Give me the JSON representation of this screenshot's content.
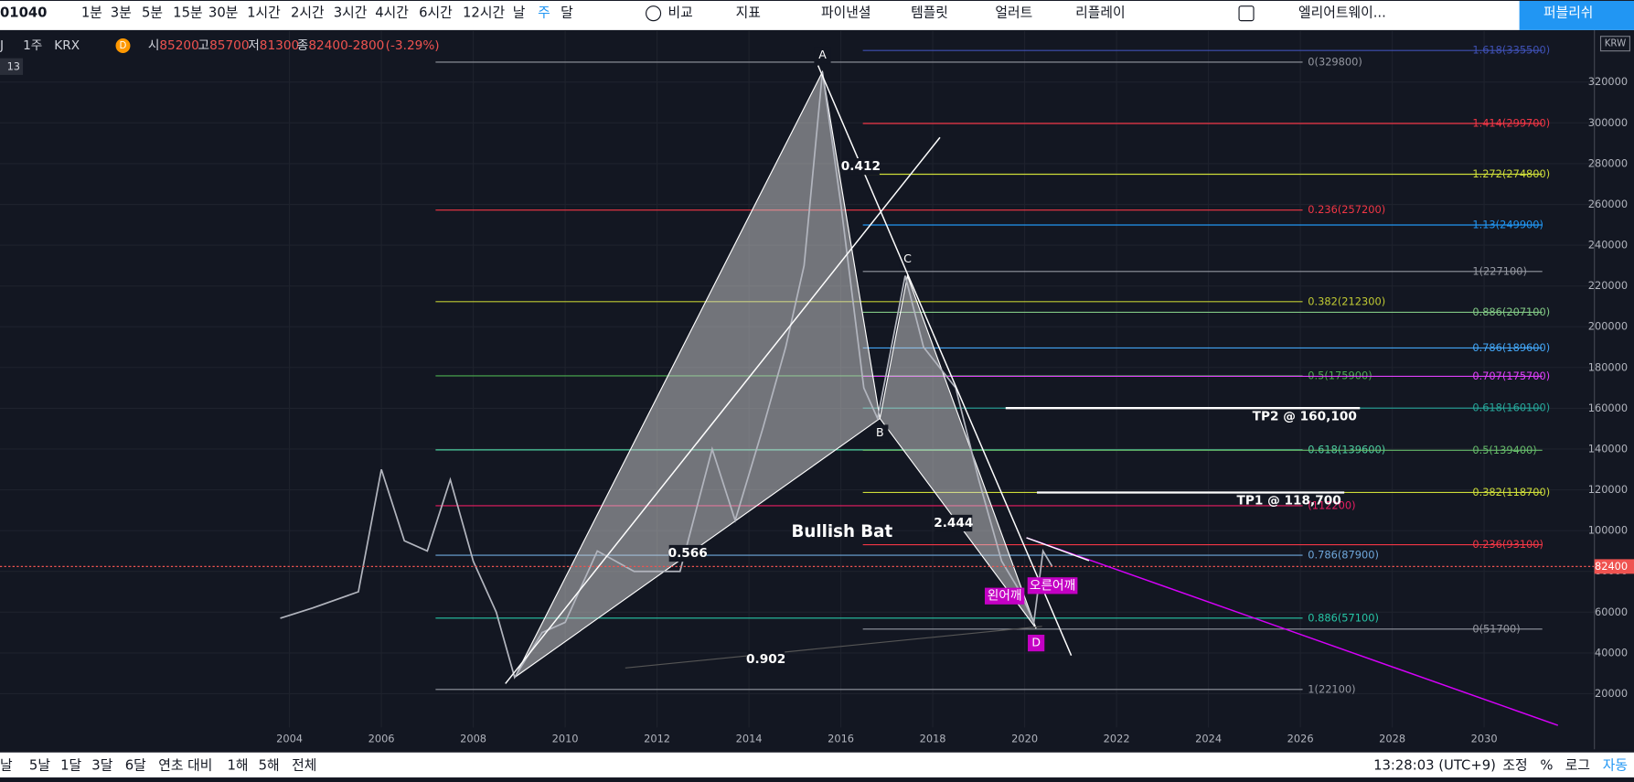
{
  "toolbar": {
    "symbol": "01040",
    "intervals": [
      "1분",
      "3분",
      "5분",
      "15분",
      "30분",
      "1시간",
      "2시간",
      "3시간",
      "4시간",
      "6시간",
      "12시간",
      "날",
      "주",
      "달"
    ],
    "compare": "비교",
    "indicators": "지표",
    "financials": "파이낸셜",
    "templates": "템플릿",
    "alert": "얼러트",
    "replay": "리플레이",
    "layout": "엘리어트웨이...",
    "publish": "퍼블리쉬"
  },
  "legend": {
    "symbol": "J",
    "interval": "1주",
    "exchange": "KRX",
    "badge": "D",
    "open_label": "시",
    "open": "85200",
    "high_label": "고",
    "high": "85700",
    "low_label": "저",
    "low": "81300",
    "close_label": "종",
    "close": "82400",
    "change": "-2800",
    "change_pct": "(-3.29%)",
    "count": "13"
  },
  "bottom_bar": {
    "ranges": [
      "날",
      "5날",
      "1달",
      "3달",
      "6달",
      "연초 대비",
      "1해",
      "5해",
      "전체"
    ],
    "time": "13:28:03 (UTC+9)",
    "adjust": "조정",
    "percent": "%",
    "log": "로그",
    "auto": "자동"
  },
  "chart_data": {
    "type": "line",
    "currency": "KRW",
    "x": [
      2003.8,
      2004.5,
      2005.5,
      2006.0,
      2006.5,
      2007.0,
      2007.5,
      2008.0,
      2008.5,
      2008.9,
      2009.5,
      2010.0,
      2010.7,
      2011.5,
      2012.5,
      2013.2,
      2013.7,
      2014.3,
      2014.8,
      2015.2,
      2015.6,
      2016.0,
      2016.5,
      2016.8,
      2017.4,
      2017.8,
      2018.5,
      2019.0,
      2019.5,
      2019.9,
      2020.2,
      2020.4,
      2020.6
    ],
    "values": [
      57000,
      62000,
      70000,
      130000,
      95000,
      90000,
      125000,
      85000,
      60000,
      28000,
      50000,
      55000,
      90000,
      80000,
      80000,
      140000,
      105000,
      150000,
      190000,
      230000,
      325000,
      260000,
      170000,
      155000,
      225000,
      190000,
      170000,
      125000,
      85000,
      70000,
      55000,
      90000,
      82400
    ],
    "color": "#b2b5be",
    "xlim": [
      1997.7,
      2032.4
    ],
    "ylim": [
      5000,
      345000
    ],
    "xticks": [
      2004,
      2006,
      2008,
      2010,
      2012,
      2014,
      2016,
      2018,
      2020,
      2022,
      2024,
      2026,
      2028,
      2030
    ],
    "yticks": [
      20000,
      40000,
      60000,
      80000,
      100000,
      120000,
      140000,
      160000,
      180000,
      200000,
      220000,
      240000,
      260000,
      280000,
      300000,
      320000
    ],
    "grid": true,
    "last_price": 82400,
    "pattern": {
      "x": [
        2008.9,
        2015.6,
        2016.85,
        2017.45,
        2020.25
      ],
      "values": [
        28000,
        325000,
        155000,
        225000,
        52000
      ],
      "labels": [
        null,
        "A",
        "B",
        "C",
        "D"
      ]
    },
    "fib_left": [
      {
        "value": 329800,
        "label": "0(329800)",
        "color": "#9598a1"
      },
      {
        "value": 257200,
        "label": "0.236(257200)",
        "color": "#f23645"
      },
      {
        "value": 212300,
        "label": "0.382(212300)",
        "color": "#c0ca33"
      },
      {
        "value": 175900,
        "label": "0.5(175900)",
        "color": "#4caf50"
      },
      {
        "value": 139600,
        "label": "0.618(139600)",
        "color": "#4dd0a0"
      },
      {
        "value": 112200,
        "label": "(112200)",
        "color": "#e91e63"
      },
      {
        "value": 87900,
        "label": "0.786(87900)",
        "color": "#6fa8dc"
      },
      {
        "value": 57100,
        "label": "0.886(57100)",
        "color": "#26c6a6"
      },
      {
        "value": 22100,
        "label": "1(22100)",
        "color": "#9598a1"
      }
    ],
    "fib_right": [
      {
        "value": 335500,
        "label": "1.618(335500)",
        "color": "#3f51b5"
      },
      {
        "value": 299700,
        "label": "1.414(299700)",
        "color": "#f23645"
      },
      {
        "value": 274800,
        "label": "1.272(274800)",
        "color": "#cddc39"
      },
      {
        "value": 249900,
        "label": "1.13(249900)",
        "color": "#2196f3"
      },
      {
        "value": 227100,
        "label": "1(227100)",
        "color": "#9598a1"
      },
      {
        "value": 207100,
        "label": "0.886(207100)",
        "color": "#81c784"
      },
      {
        "value": 189600,
        "label": "0.786(189600)",
        "color": "#42a5f5"
      },
      {
        "value": 175700,
        "label": "0.707(175700)",
        "color": "#e040fb"
      },
      {
        "value": 160100,
        "label": "0.618(160100)",
        "color": "#26a69a"
      },
      {
        "value": 139400,
        "label": "0.5(139400)",
        "color": "#66bb6a"
      },
      {
        "value": 118700,
        "label": "0.382(118700)",
        "color": "#cddc39"
      },
      {
        "value": 93100,
        "label": "0.236(93100)",
        "color": "#f23645"
      },
      {
        "value": 51700,
        "label": "0(51700)",
        "color": "#9598a1"
      }
    ],
    "targets": [
      {
        "value": 160100,
        "label": "TP2 @ 160,100"
      },
      {
        "value": 118700,
        "label": "TP1 @ 118,700"
      }
    ],
    "annotations": {
      "ratio_ab": "0.412",
      "ratio_xb": "0.566",
      "ratio_bd": "2.444",
      "ratio_ad": "0.902",
      "pattern_name": "Bullish Bat",
      "left_shoulder": "왼어깨",
      "right_shoulder": "오른어깨"
    }
  }
}
